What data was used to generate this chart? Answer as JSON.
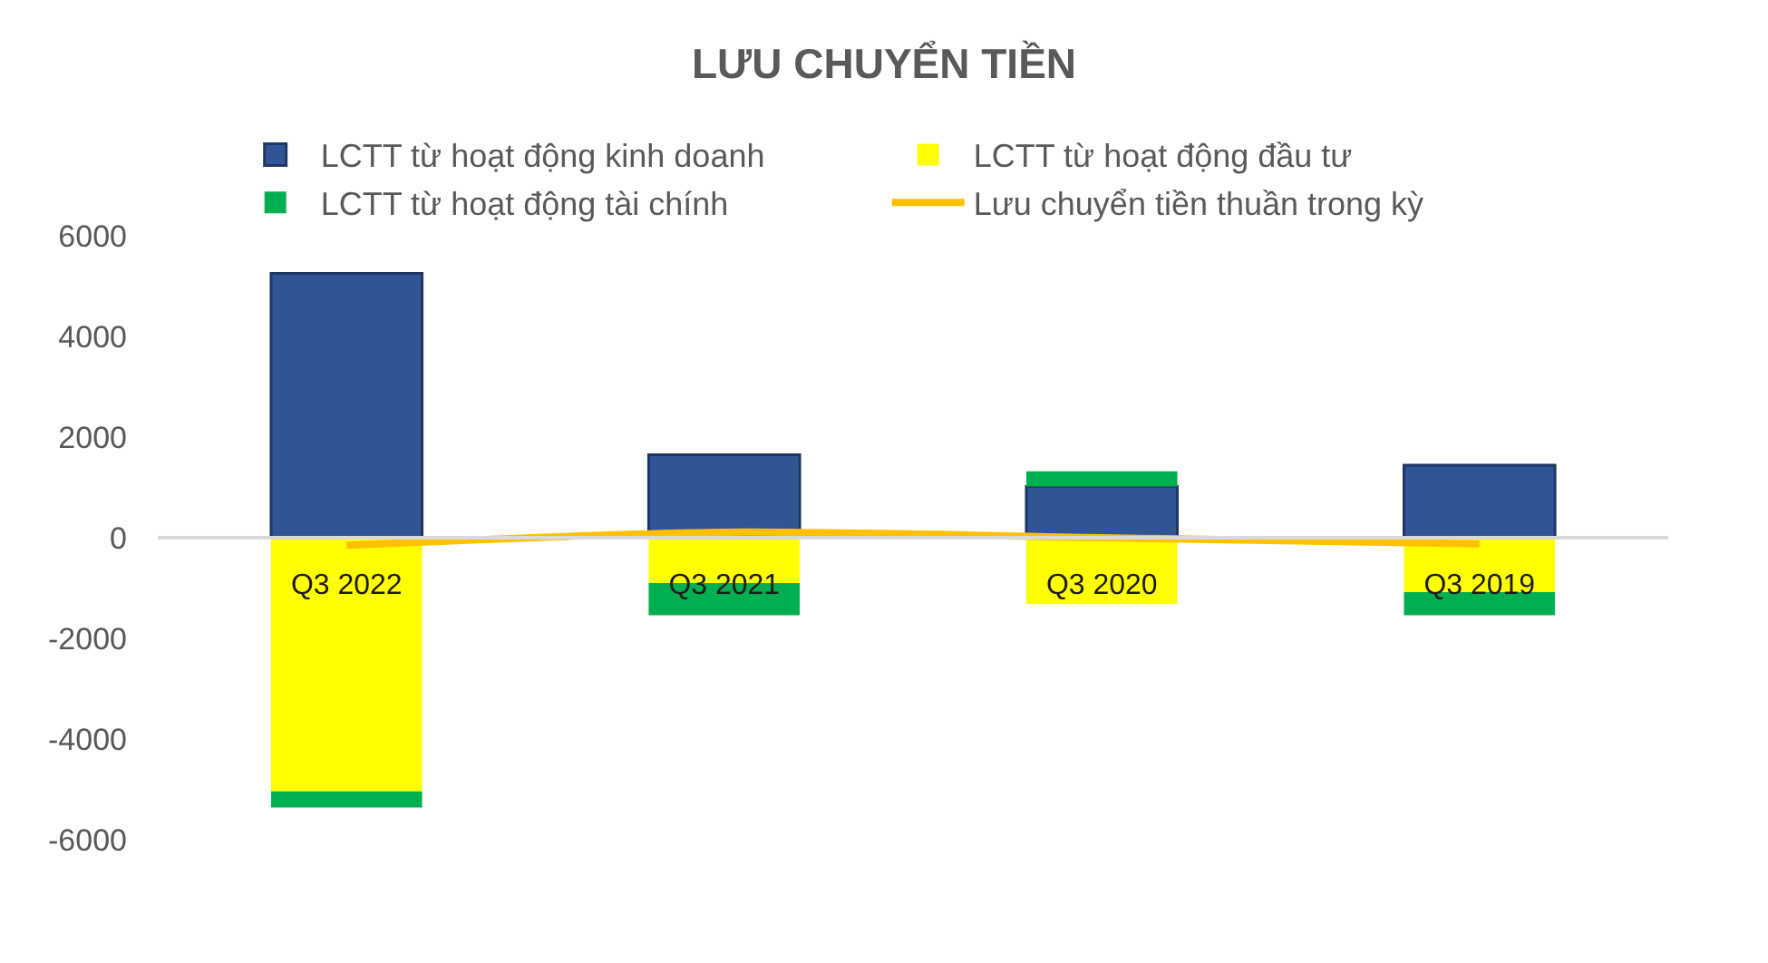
{
  "chart_data": {
    "type": "bar",
    "title": "LƯU CHUYỂN TIỀN",
    "categories": [
      "Q3 2022",
      "Q3 2021",
      "Q3 2020",
      "Q3 2019"
    ],
    "series": [
      {
        "name": "LCTT từ hoạt động kinh doanh",
        "color": "#2f5597",
        "values": [
          5250,
          1650,
          1020,
          1440
        ]
      },
      {
        "name": "LCTT từ hoạt động đầu tư",
        "color": "#ffff00",
        "values": [
          -5040,
          -900,
          -1320,
          -1080
        ]
      },
      {
        "name": "LCTT từ hoạt động tài chính",
        "color": "#00b050",
        "values": [
          -320,
          -640,
          300,
          -460
        ]
      },
      {
        "name": "Lưu chuyển tiền thuần trong kỳ",
        "color": "#ffc000",
        "type": "line",
        "values": [
          -150,
          110,
          0,
          -120
        ]
      }
    ],
    "stacked": true,
    "ylim": [
      -6000,
      6000
    ],
    "yticks": [
      -6000,
      -4000,
      -2000,
      0,
      2000,
      4000,
      6000
    ],
    "legend": "top"
  }
}
